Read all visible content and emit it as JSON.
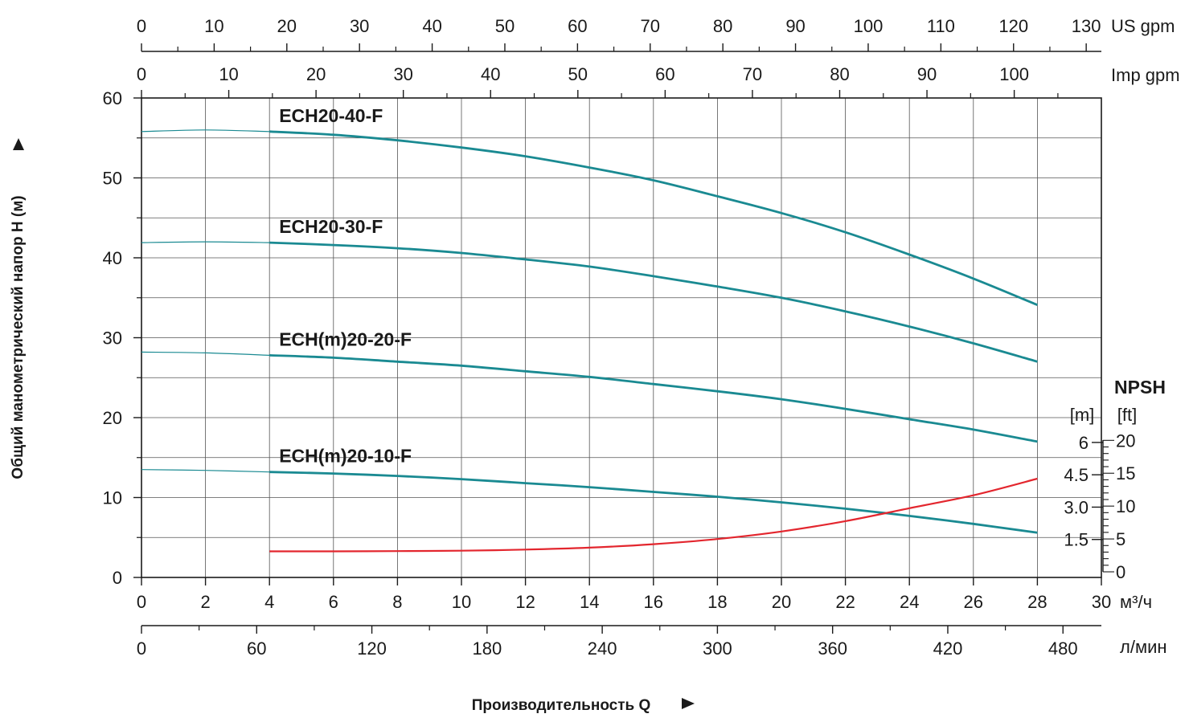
{
  "chart_data": {
    "type": "line",
    "x_axis": {
      "unit": "м³/ч",
      "range": [
        0,
        30
      ],
      "ticks": [
        "0",
        "2",
        "4",
        "6",
        "8",
        "10",
        "12",
        "14",
        "16",
        "18",
        "20",
        "22",
        "24",
        "26",
        "28",
        "30"
      ]
    },
    "y_axis": {
      "label": "Общий манометрический напор H (м)",
      "range": [
        0,
        60
      ],
      "ticks": [
        "0",
        "10",
        "20",
        "30",
        "40",
        "50",
        "60"
      ]
    },
    "top_axis_usgpm": {
      "unit": "US gpm",
      "ticks": [
        "0",
        "10",
        "20",
        "30",
        "40",
        "50",
        "60",
        "70",
        "80",
        "90",
        "100",
        "110",
        "120",
        "130"
      ]
    },
    "top_axis_impgpm": {
      "unit": "Imp gpm",
      "ticks": [
        "0",
        "10",
        "20",
        "30",
        "40",
        "50",
        "60",
        "70",
        "80",
        "90",
        "100"
      ]
    },
    "bottom_axis_lmin": {
      "unit": "л/мин",
      "ticks": [
        "0",
        "60",
        "120",
        "180",
        "240",
        "300",
        "360",
        "420",
        "480"
      ]
    },
    "x_title": "Производительность Q",
    "npsh_axis": {
      "title": "NPSH",
      "m_unit": "[m]",
      "ft_unit": "[ft]",
      "m_ticks": [
        "6",
        "4.5",
        "3.0",
        "1.5"
      ],
      "ft_ticks": [
        "20",
        "15",
        "10",
        "5",
        "0"
      ]
    },
    "series": [
      {
        "name": "ECH20-40-F",
        "color": "#1a8a92",
        "points": [
          [
            0,
            55.8
          ],
          [
            2,
            56
          ],
          [
            4,
            55.8
          ],
          [
            6,
            55.4
          ],
          [
            8,
            54.7
          ],
          [
            10,
            53.8
          ],
          [
            12,
            52.7
          ],
          [
            14,
            51.3
          ],
          [
            16,
            49.7
          ],
          [
            18,
            47.7
          ],
          [
            20,
            45.6
          ],
          [
            22,
            43.2
          ],
          [
            24,
            40.4
          ],
          [
            26,
            37.4
          ],
          [
            28,
            34.1
          ]
        ]
      },
      {
        "name": "ECH20-30-F",
        "color": "#1a8a92",
        "points": [
          [
            0,
            41.9
          ],
          [
            2,
            42
          ],
          [
            4,
            41.9
          ],
          [
            6,
            41.6
          ],
          [
            8,
            41.2
          ],
          [
            10,
            40.6
          ],
          [
            12,
            39.8
          ],
          [
            14,
            38.9
          ],
          [
            16,
            37.7
          ],
          [
            18,
            36.4
          ],
          [
            20,
            35
          ],
          [
            22,
            33.3
          ],
          [
            24,
            31.4
          ],
          [
            26,
            29.3
          ],
          [
            28,
            27
          ]
        ]
      },
      {
        "name": "ECH(m)20-20-F",
        "color": "#1a8a92",
        "points": [
          [
            0,
            28.2
          ],
          [
            2,
            28.1
          ],
          [
            4,
            27.8
          ],
          [
            6,
            27.5
          ],
          [
            8,
            27
          ],
          [
            10,
            26.5
          ],
          [
            12,
            25.8
          ],
          [
            14,
            25.1
          ],
          [
            16,
            24.2
          ],
          [
            18,
            23.3
          ],
          [
            20,
            22.3
          ],
          [
            22,
            21.1
          ],
          [
            24,
            19.8
          ],
          [
            26,
            18.5
          ],
          [
            28,
            17
          ]
        ]
      },
      {
        "name": "ECH(m)20-10-F",
        "color": "#1a8a92",
        "points": [
          [
            0,
            13.5
          ],
          [
            2,
            13.4
          ],
          [
            4,
            13.2
          ],
          [
            6,
            13
          ],
          [
            8,
            12.7
          ],
          [
            10,
            12.3
          ],
          [
            12,
            11.8
          ],
          [
            14,
            11.3
          ],
          [
            16,
            10.7
          ],
          [
            18,
            10.1
          ],
          [
            20,
            9.4
          ],
          [
            22,
            8.6
          ],
          [
            24,
            7.7
          ],
          [
            26,
            6.7
          ],
          [
            28,
            5.6
          ]
        ]
      },
      {
        "name": "",
        "color": "#e3262e",
        "axis": "npsh_m",
        "points": [
          [
            4,
            0.95
          ],
          [
            6,
            0.95
          ],
          [
            8,
            0.96
          ],
          [
            10,
            0.98
          ],
          [
            12,
            1.03
          ],
          [
            14,
            1.12
          ],
          [
            16,
            1.28
          ],
          [
            18,
            1.52
          ],
          [
            20,
            1.87
          ],
          [
            22,
            2.35
          ],
          [
            24,
            2.95
          ],
          [
            26,
            3.55
          ],
          [
            28,
            4.32
          ]
        ]
      }
    ]
  }
}
